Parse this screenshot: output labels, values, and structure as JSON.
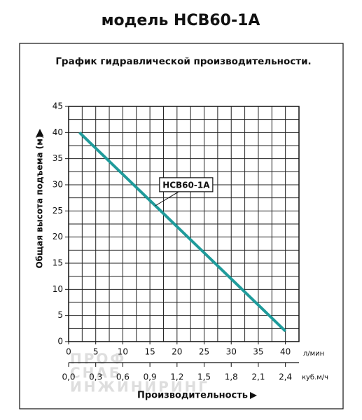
{
  "chart_data": {
    "type": "line",
    "title": "модель HCB60-1A",
    "subtitle": "График гидравлической производительности.",
    "y_label": "Общая высота подъема (м)",
    "x_label": "Производительность",
    "x_unit": "л/мин",
    "x2_unit": "куб.м/ч",
    "x": [
      2,
      40
    ],
    "series": [
      {
        "name": "HCB60-1A",
        "color": "#1f9b9b",
        "values": [
          40,
          2
        ]
      }
    ],
    "annotation": {
      "text": "HCB60-1A",
      "x": 16,
      "y": 26
    },
    "xlim": [
      0,
      42.5
    ],
    "xticks": [
      0,
      5,
      10,
      15,
      20,
      25,
      30,
      35,
      40
    ],
    "x2lim": [
      0,
      2.55
    ],
    "x2ticks": [
      {
        "value": 0,
        "label": "0,0"
      },
      {
        "value": 0.3,
        "label": "0,3"
      },
      {
        "value": 0.6,
        "label": "0,6"
      },
      {
        "value": 0.9,
        "label": "0,9"
      },
      {
        "value": 1.2,
        "label": "1,2"
      },
      {
        "value": 1.5,
        "label": "1,5"
      },
      {
        "value": 1.8,
        "label": "1,8"
      },
      {
        "value": 2.1,
        "label": "2,1"
      },
      {
        "value": 2.4,
        "label": "2,4"
      }
    ],
    "ylim": [
      0,
      45
    ],
    "yticks": [
      0,
      5,
      10,
      15,
      20,
      25,
      30,
      35,
      40,
      45
    ],
    "grid": true,
    "minor_grid_step": 2.5,
    "watermark": [
      "ПРОФ",
      "СНАБ",
      "ИНЖИНИРИНГ"
    ]
  }
}
